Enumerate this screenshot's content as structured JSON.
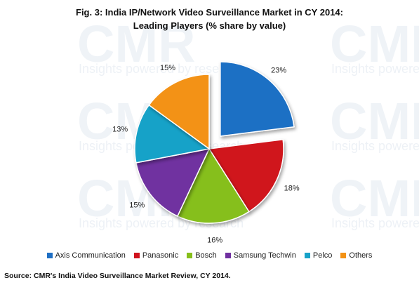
{
  "watermark": {
    "logo_text": "CMR",
    "tagline": "Insights powered by research"
  },
  "chart_data": {
    "type": "pie",
    "title_line1": "Fig. 3: India IP/Network Video Surveillance Market in CY 2014:",
    "title_line2": "Leading Players (% share by value)",
    "slices": [
      {
        "name": "Axis Communication",
        "value": 23,
        "label": "23%",
        "color": "#1f6fc4",
        "exploded": true
      },
      {
        "name": "Panasonic",
        "value": 18,
        "label": "18%",
        "color": "#d0121d",
        "exploded": false
      },
      {
        "name": "Bosch",
        "value": 16,
        "label": "16%",
        "color": "#86bf1a",
        "exploded": false
      },
      {
        "name": "Samsung Techwin",
        "value": 15,
        "label": "15%",
        "color": "#7030a0",
        "exploded": false
      },
      {
        "name": "Pelco",
        "value": 13,
        "label": "13%",
        "color": "#17a2c8",
        "exploded": false
      },
      {
        "name": "Others",
        "value": 15,
        "label": "15%",
        "color": "#f39214",
        "exploded": false
      }
    ],
    "legend_placement": "bottom"
  },
  "source": "Source: CMR's India Video Surveillance Market Review, CY 2014."
}
